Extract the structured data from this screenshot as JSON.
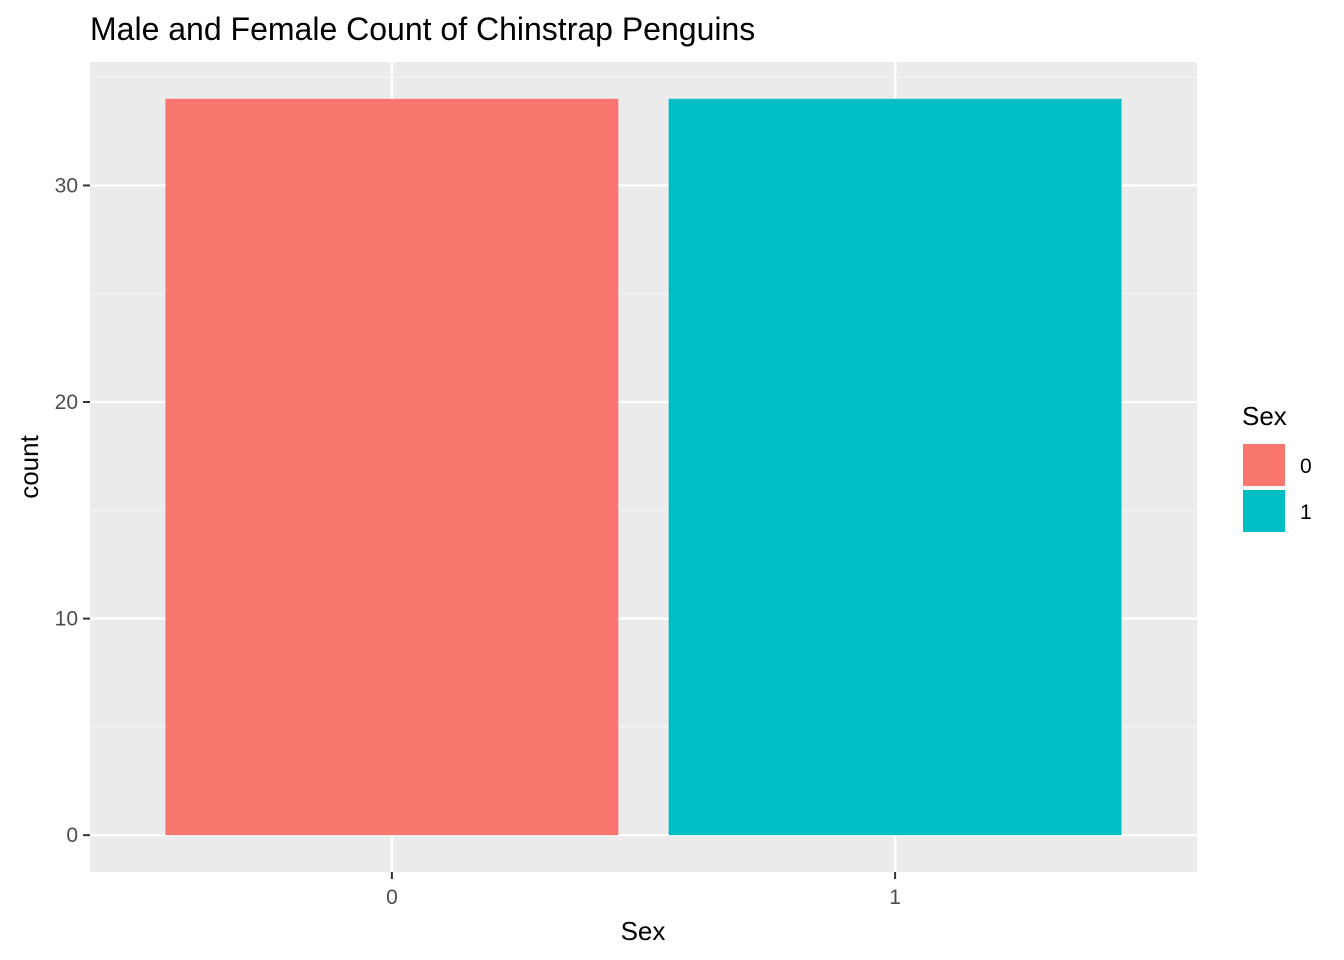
{
  "chart_data": {
    "type": "bar",
    "title": "Male and Female Count of Chinstrap Penguins",
    "xlabel": "Sex",
    "ylabel": "count",
    "categories": [
      "0",
      "1"
    ],
    "values": [
      34,
      34
    ],
    "ylim": [
      0,
      34
    ],
    "y_ticks": [
      0,
      10,
      20,
      30
    ],
    "grid": true,
    "legend": {
      "title": "Sex",
      "position": "right",
      "entries": [
        {
          "label": "0",
          "color": "#F8766D"
        },
        {
          "label": "1",
          "color": "#00BFC4"
        }
      ]
    },
    "colors": {
      "panel_background": "#EBEBEB",
      "grid_major": "#FFFFFF",
      "grid_minor": "#F5F5F5",
      "tick_mark": "#333333"
    }
  }
}
